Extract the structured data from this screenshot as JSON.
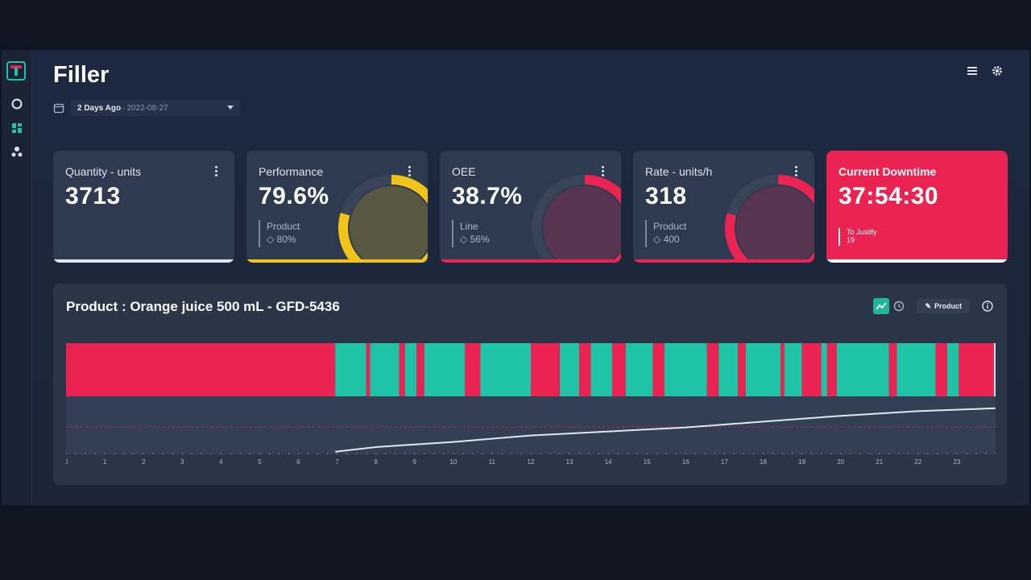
{
  "page": {
    "title": "Filler"
  },
  "date_filter": {
    "label": "2 Days Ago",
    "separator": "-",
    "date": "2022-08-27"
  },
  "kpis": [
    {
      "label": "Quantity - units",
      "value": "3713"
    },
    {
      "label": "Performance",
      "value": "79.6%",
      "sub_label": "Product",
      "sub_value": "◇ 80%",
      "gauge_fraction": 0.796,
      "color": "#f2c318"
    },
    {
      "label": "OEE",
      "value": "38.7%",
      "sub_label": "Line",
      "sub_value": "◇ 56%",
      "gauge_fraction": 0.387,
      "color": "#eb2352"
    },
    {
      "label": "Rate - units/h",
      "value": "318",
      "sub_label": "Product",
      "sub_value": "◇ 400",
      "gauge_fraction": 0.795,
      "color": "#eb2352"
    },
    {
      "label": "Current Downtime",
      "value": "37:54:30",
      "sub_label": "To Justify",
      "sub_value": "19",
      "color": "#eb2352"
    }
  ],
  "panel": {
    "title": "Product : Orange juice 500 mL - GFD-5436",
    "product_button": "Product",
    "pencil_glyph": "✎"
  },
  "colors": {
    "running": "#1fc3a6",
    "stopped": "#eb2352",
    "accent": "#1fb796"
  },
  "chart_data": {
    "type": "timeline",
    "x_range": [
      0,
      24
    ],
    "x_ticks": [
      "0",
      "1",
      "2",
      "3",
      "4",
      "5",
      "6",
      "7",
      "8",
      "9",
      "10",
      "11",
      "12",
      "13",
      "14",
      "15",
      "16",
      "17",
      "18",
      "19",
      "20",
      "21",
      "22",
      "23"
    ],
    "segments": [
      {
        "state": "stopped",
        "start": 0,
        "end": 6.95
      },
      {
        "state": "running",
        "start": 6.95,
        "end": 7.75
      },
      {
        "state": "stopped",
        "start": 7.75,
        "end": 7.85
      },
      {
        "state": "running",
        "start": 7.85,
        "end": 8.6
      },
      {
        "state": "stopped",
        "start": 8.6,
        "end": 8.75
      },
      {
        "state": "running",
        "start": 8.75,
        "end": 9.05
      },
      {
        "state": "stopped",
        "start": 9.05,
        "end": 9.25
      },
      {
        "state": "running",
        "start": 9.25,
        "end": 10.3
      },
      {
        "state": "stopped",
        "start": 10.3,
        "end": 10.7
      },
      {
        "state": "running",
        "start": 10.7,
        "end": 12.0
      },
      {
        "state": "stopped",
        "start": 12.0,
        "end": 12.75
      },
      {
        "state": "running",
        "start": 12.75,
        "end": 13.25
      },
      {
        "state": "stopped",
        "start": 13.25,
        "end": 13.55
      },
      {
        "state": "running",
        "start": 13.55,
        "end": 14.1
      },
      {
        "state": "stopped",
        "start": 14.1,
        "end": 14.45
      },
      {
        "state": "running",
        "start": 14.45,
        "end": 15.15
      },
      {
        "state": "stopped",
        "start": 15.15,
        "end": 15.45
      },
      {
        "state": "running",
        "start": 15.45,
        "end": 16.55
      },
      {
        "state": "stopped",
        "start": 16.55,
        "end": 16.85
      },
      {
        "state": "running",
        "start": 16.85,
        "end": 17.35
      },
      {
        "state": "stopped",
        "start": 17.35,
        "end": 17.55
      },
      {
        "state": "running",
        "start": 17.55,
        "end": 18.45
      },
      {
        "state": "stopped",
        "start": 18.45,
        "end": 18.55
      },
      {
        "state": "running",
        "start": 18.55,
        "end": 19.0
      },
      {
        "state": "stopped",
        "start": 19.0,
        "end": 19.5
      },
      {
        "state": "running",
        "start": 19.5,
        "end": 19.65
      },
      {
        "state": "stopped",
        "start": 19.65,
        "end": 19.9
      },
      {
        "state": "running",
        "start": 19.9,
        "end": 21.25
      },
      {
        "state": "stopped",
        "start": 21.25,
        "end": 21.45
      },
      {
        "state": "running",
        "start": 21.45,
        "end": 22.45
      },
      {
        "state": "stopped",
        "start": 22.45,
        "end": 22.75
      },
      {
        "state": "running",
        "start": 22.75,
        "end": 23.05
      },
      {
        "state": "stopped",
        "start": 23.05,
        "end": 24.0
      }
    ],
    "cumulative_curve": [
      [
        6.95,
        0.1
      ],
      [
        8,
        0.18
      ],
      [
        10,
        0.27
      ],
      [
        12,
        0.38
      ],
      [
        14,
        0.45
      ],
      [
        16,
        0.52
      ],
      [
        18,
        0.62
      ],
      [
        20,
        0.72
      ],
      [
        22,
        0.8
      ],
      [
        24,
        0.85
      ]
    ]
  }
}
